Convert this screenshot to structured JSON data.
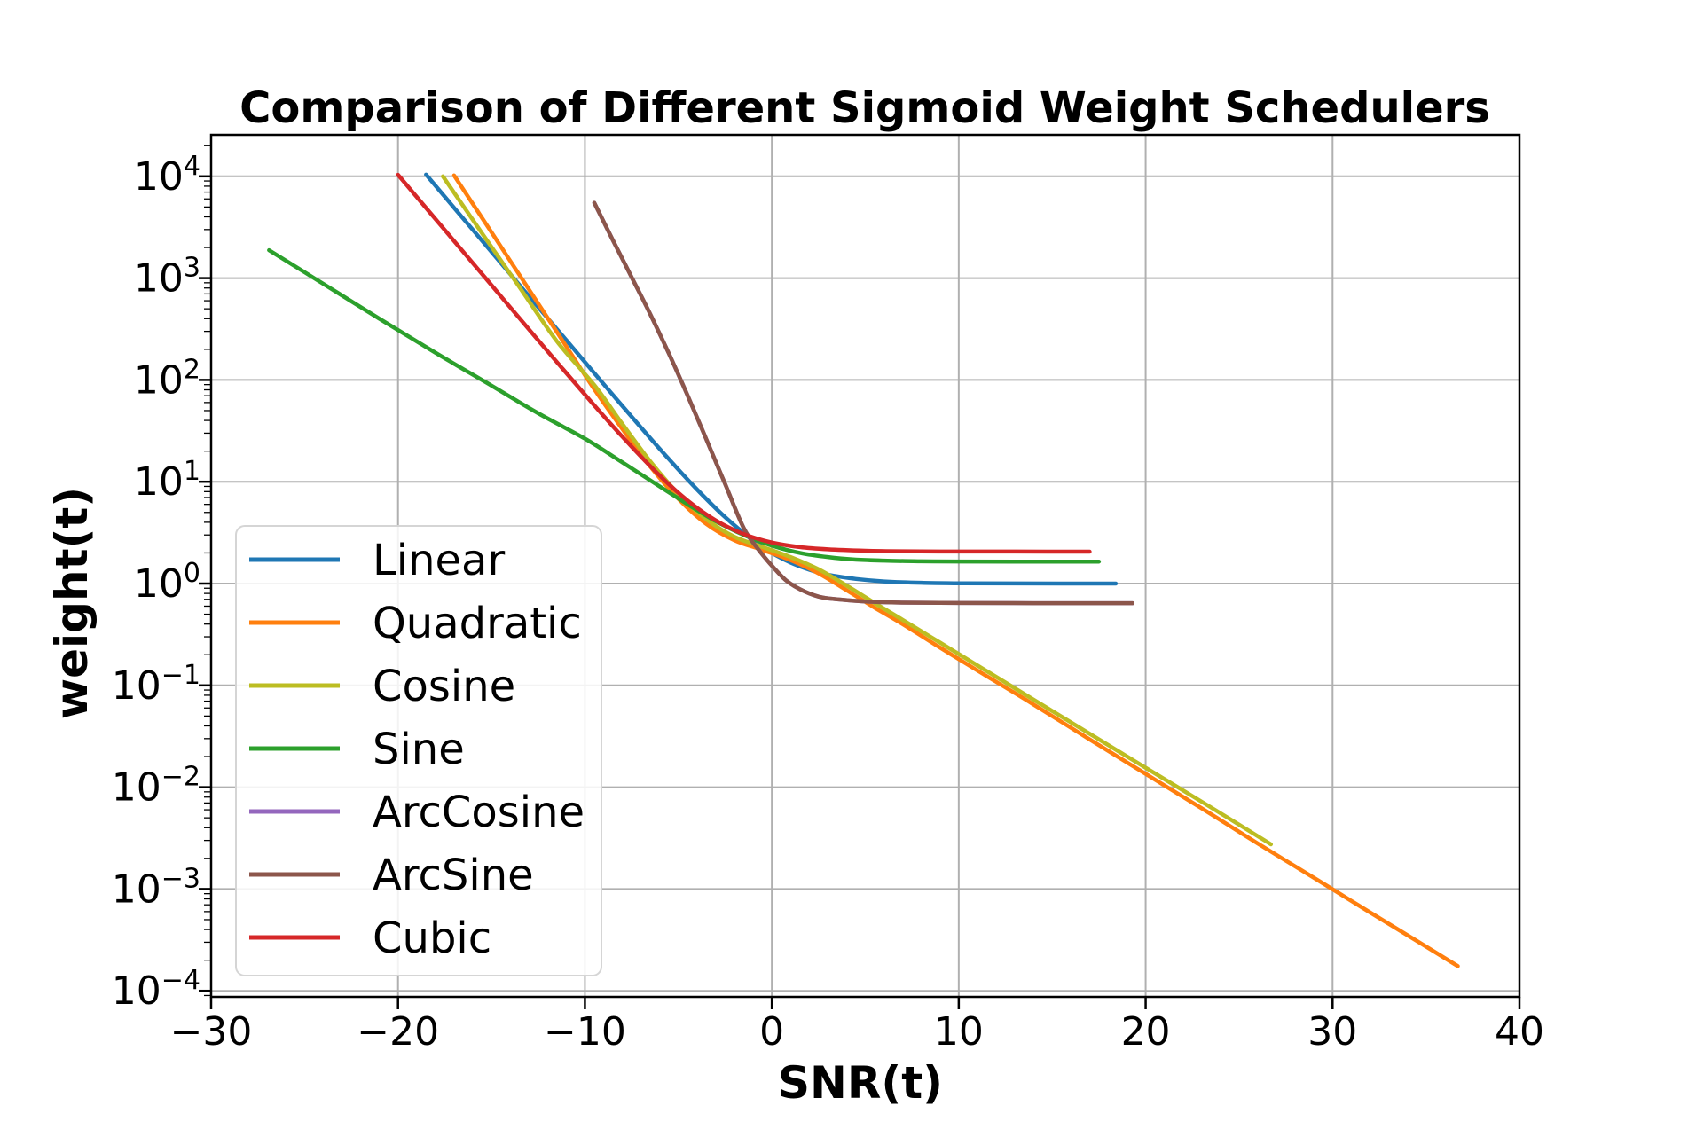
{
  "chart_data": {
    "type": "line",
    "title": "Comparison of Different Sigmoid Weight Schedulers",
    "xlabel": "SNR(t)",
    "ylabel": "weight(t)",
    "x_scale": "linear",
    "y_scale": "log",
    "xlim": [
      -30,
      40
    ],
    "ylim": [
      8e-05,
      26000
    ],
    "x_ticks": [
      -30,
      -20,
      -10,
      0,
      10,
      20,
      30,
      40
    ],
    "y_tick_exponents": [
      4,
      3,
      2,
      1,
      0,
      -1,
      -2,
      -3,
      -4
    ],
    "grid": true,
    "legend_position": "center left",
    "background_color": "#ffffff",
    "grid_color": "#b0b0b0",
    "spine_color": "#000000",
    "series": [
      {
        "name": "Linear",
        "color": "#1f77b4",
        "x": [
          -18.5,
          -16,
          -13.5,
          -11,
          -9,
          -7,
          -5.5,
          -4,
          -2.5,
          -1,
          0,
          1,
          2,
          3,
          4.5,
          6,
          8,
          10,
          13,
          18.4
        ],
        "y": [
          10406,
          2982,
          855,
          246,
          91,
          34.1,
          16.6,
          8.39,
          4.49,
          2.65,
          2.0,
          1.61,
          1.37,
          1.22,
          1.11,
          1.05,
          1.018,
          1.007,
          1.002,
          1.0
        ]
      },
      {
        "name": "Quadratic",
        "color": "#ff7f0e",
        "x": [
          -17,
          -15,
          -13,
          -11,
          -9.5,
          -8,
          -6.5,
          -5,
          -3.5,
          -2,
          -0.5,
          1,
          2.5,
          4,
          5.5,
          7,
          9,
          11,
          14,
          17,
          20,
          23,
          26,
          29,
          32,
          34.5,
          36.7
        ],
        "y": [
          10200,
          2820,
          776,
          214,
          81,
          33,
          14.1,
          6.8,
          3.85,
          2.66,
          2.14,
          1.7,
          1.26,
          0.86,
          0.58,
          0.4,
          0.235,
          0.14,
          0.065,
          0.0295,
          0.0135,
          0.0062,
          0.0028,
          0.00129,
          0.00059,
          0.00031,
          0.000175
        ]
      },
      {
        "name": "Cosine",
        "color": "#bcbd22",
        "x": [
          -17.6,
          -15.5,
          -13.5,
          -11.5,
          -9.5,
          -8,
          -6.5,
          -5,
          -3.5,
          -2,
          -0.5,
          1,
          2.5,
          4,
          5.5,
          7,
          9,
          11,
          14,
          17,
          20,
          23,
          26.7
        ],
        "y": [
          10000,
          2755,
          813,
          240,
          89,
          37,
          15.8,
          7.6,
          4.27,
          2.88,
          2.29,
          1.82,
          1.38,
          0.955,
          0.645,
          0.44,
          0.263,
          0.157,
          0.0725,
          0.0335,
          0.0155,
          0.0072,
          0.00275
        ]
      },
      {
        "name": "Sine",
        "color": "#2ca02c",
        "x": [
          -26.9,
          -24,
          -21,
          -18,
          -15,
          -12.5,
          -10,
          -8,
          -6,
          -4.5,
          -3,
          -1.5,
          0,
          1.5,
          3,
          4.5,
          6,
          8,
          10,
          13,
          17.5
        ],
        "y": [
          1880,
          880,
          400,
          185,
          88,
          47,
          26.5,
          15.5,
          9.0,
          6.0,
          4.1,
          3.0,
          2.36,
          2.0,
          1.82,
          1.72,
          1.68,
          1.655,
          1.648,
          1.644,
          1.643
        ]
      },
      {
        "name": "ArcCosine",
        "color": "#9467bd",
        "x": [
          -9.5,
          -8.5,
          -7.5,
          -6.5,
          -5.5,
          -4.5,
          -3.5,
          -2.5,
          -1.5,
          -0.75,
          0,
          0.75,
          1.5,
          2.5,
          3.5,
          5,
          7,
          10,
          14,
          19.3
        ],
        "y": [
          5500,
          2350,
          1020,
          440,
          180,
          70,
          26,
          9.5,
          3.5,
          2.2,
          1.5,
          1.08,
          0.88,
          0.745,
          0.7,
          0.667,
          0.65,
          0.644,
          0.6425,
          0.642
        ]
      },
      {
        "name": "ArcSine",
        "color": "#8c564b",
        "x": [
          -9.5,
          -8.5,
          -7.5,
          -6.5,
          -5.5,
          -4.5,
          -3.5,
          -2.5,
          -1.5,
          -0.75,
          0,
          0.75,
          1.5,
          2.5,
          3.5,
          5,
          7,
          10,
          14,
          19.3
        ],
        "y": [
          5500,
          2350,
          1020,
          440,
          180,
          70,
          26,
          9.5,
          3.5,
          2.2,
          1.5,
          1.08,
          0.88,
          0.745,
          0.7,
          0.667,
          0.65,
          0.644,
          0.6425,
          0.642
        ]
      },
      {
        "name": "Cubic",
        "color": "#d62728",
        "x": [
          -20,
          -17.5,
          -15,
          -12.5,
          -10,
          -8,
          -6,
          -4.5,
          -3,
          -1.5,
          0,
          1.5,
          3,
          5,
          7,
          10,
          13,
          17
        ],
        "y": [
          10354,
          2971,
          853,
          245,
          71.8,
          27.7,
          11.5,
          6.52,
          4.17,
          3.06,
          2.53,
          2.28,
          2.17,
          2.1,
          2.074,
          2.063,
          2.061,
          2.06
        ]
      }
    ]
  }
}
